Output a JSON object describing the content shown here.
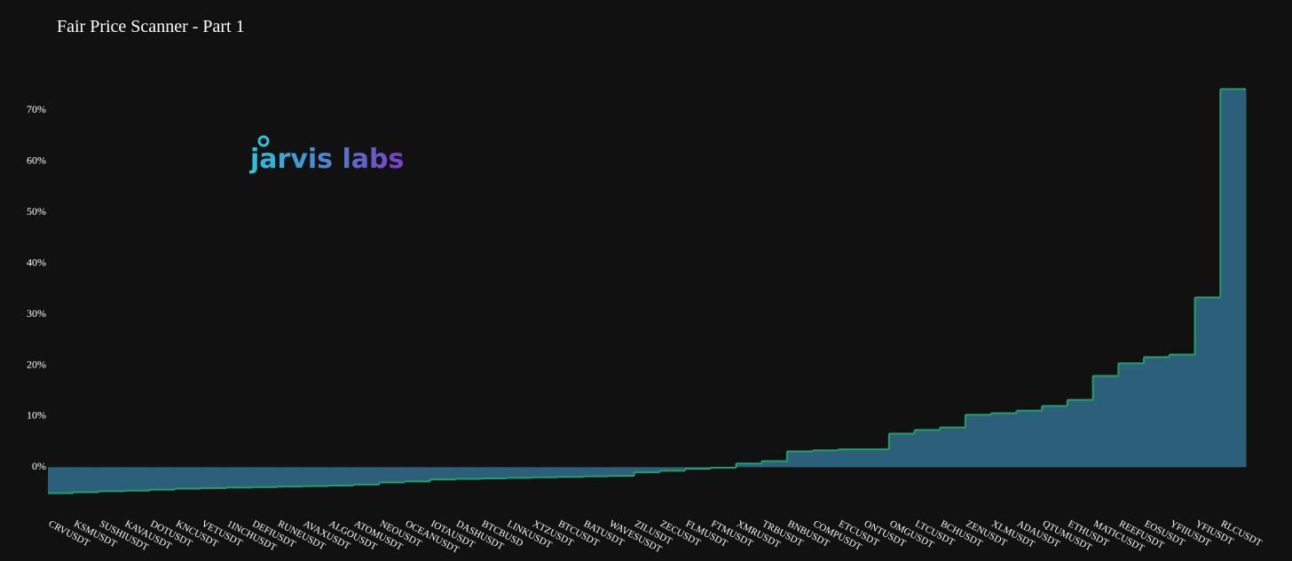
{
  "chart_data": {
    "type": "step-area",
    "title": "Fair Price Scanner - Part 1",
    "watermark": "jarvis labs",
    "categories": [
      "CRVUSDT",
      "KSMUSDT",
      "SUSHIUSDT",
      "KAVAUSDT",
      "DOTUSDT",
      "KNCUSDT",
      "VETUSDT",
      "1INCHUSDT",
      "DEFIUSDT",
      "RUNEUSDT",
      "AVAXUSDT",
      "ALGOUSDT",
      "ATOMUSDT",
      "NEOUSDT",
      "OCEANUSDT",
      "IOTAUSDT",
      "DASHUSDT",
      "BTCBUSD",
      "LINKUSDT",
      "XTZUSDT",
      "BTCUSDT",
      "BATUSDT",
      "WAVESUSDT",
      "ZILUSDT",
      "ZECUSDT",
      "FLMUSDT",
      "FTMUSDT",
      "XMRUSDT",
      "TRBUSDT",
      "BNBUSDT",
      "COMPUSDT",
      "ETCUSDT",
      "ONTUSDT",
      "OMGUSDT",
      "LTCUSDT",
      "BCHUSDT",
      "ZENUSDT",
      "XLMUSDT",
      "ADAUSDT",
      "QTUMUSDT",
      "ETHUSDT",
      "MATICUSDT",
      "REEFUSDT",
      "EOSUSDT",
      "YFIIUSDT",
      "YFIUSDT",
      "RLCUSDT"
    ],
    "values": [
      -5.1,
      -4.9,
      -4.7,
      -4.6,
      -4.4,
      -4.2,
      -4.1,
      -4.0,
      -3.9,
      -3.8,
      -3.7,
      -3.6,
      -3.4,
      -3.0,
      -2.8,
      -2.4,
      -2.3,
      -2.2,
      -2.1,
      -2.0,
      -1.9,
      -1.8,
      -1.7,
      -1.0,
      -0.7,
      -0.3,
      -0.1,
      0.7,
      1.2,
      3.1,
      3.3,
      3.5,
      3.5,
      6.6,
      7.3,
      7.8,
      10.3,
      10.6,
      11.1,
      12.0,
      13.2,
      17.9,
      20.4,
      21.6,
      22.1,
      33.3,
      74.2
    ],
    "fill_color": "#2c5f79",
    "line_color": "#22a06b",
    "ylim": [
      -9,
      76
    ],
    "yticks": [
      {
        "value": 0,
        "label": "0%"
      },
      {
        "value": 10,
        "label": "10%"
      },
      {
        "value": 20,
        "label": "20%"
      },
      {
        "value": 30,
        "label": "30%"
      },
      {
        "value": 40,
        "label": "40%"
      },
      {
        "value": 50,
        "label": "50%"
      },
      {
        "value": 60,
        "label": "60%"
      },
      {
        "value": 70,
        "label": "70%"
      }
    ],
    "grid": false
  }
}
